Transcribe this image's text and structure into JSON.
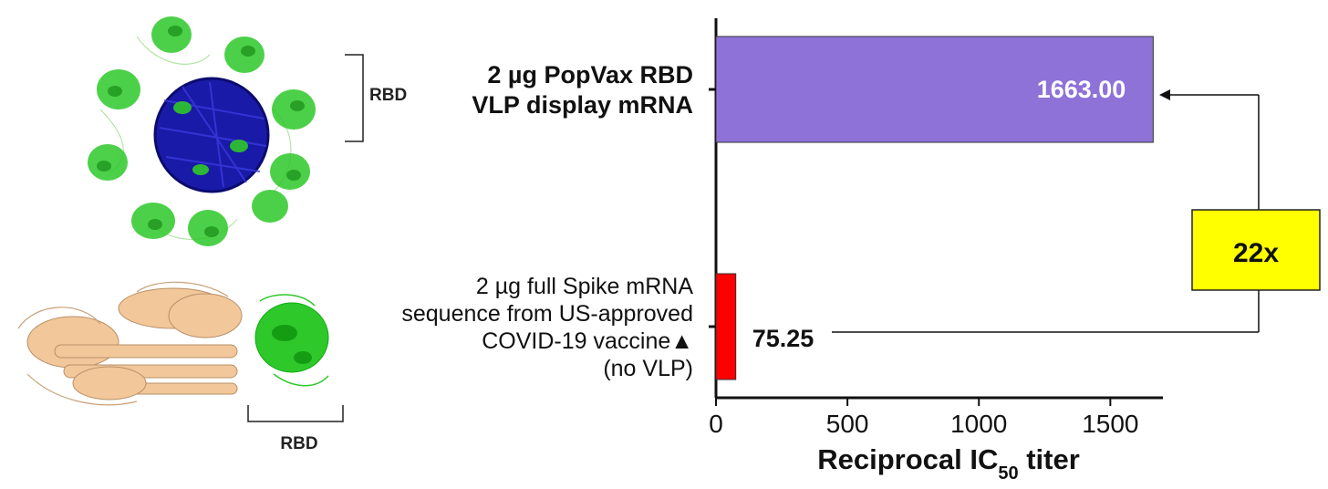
{
  "rbd_label_top": "RBD",
  "rbd_label_bottom": "RBD",
  "chart_data": {
    "type": "bar",
    "orientation": "horizontal",
    "categories": [
      [
        "2  µg PopVax RBD",
        "VLP display mRNA"
      ],
      [
        "2 µg full Spike mRNA",
        "sequence from US-approved",
        "COVID-19 vaccine▲",
        "(no VLP)"
      ]
    ],
    "values": [
      1663.0,
      75.25
    ],
    "value_labels": [
      "1663.00",
      "75.25"
    ],
    "colors": [
      "#8e72d8",
      "#ff0000"
    ],
    "xlabel_main": "Reciprocal IC",
    "xlabel_sub": "50",
    "xlabel_suffix": " titer",
    "xlim": [
      0,
      1700
    ],
    "xticks": [
      0,
      500,
      1000,
      1500
    ],
    "xtick_labels": [
      "0",
      "500",
      "1000",
      "1500"
    ],
    "grid": false
  },
  "fold_annotation": {
    "label": "22x",
    "box_color": "#ffff00"
  },
  "icons": {
    "vlp": "vlp-nanoparticle-structure-icon",
    "spike": "spike-protein-structure-icon"
  }
}
